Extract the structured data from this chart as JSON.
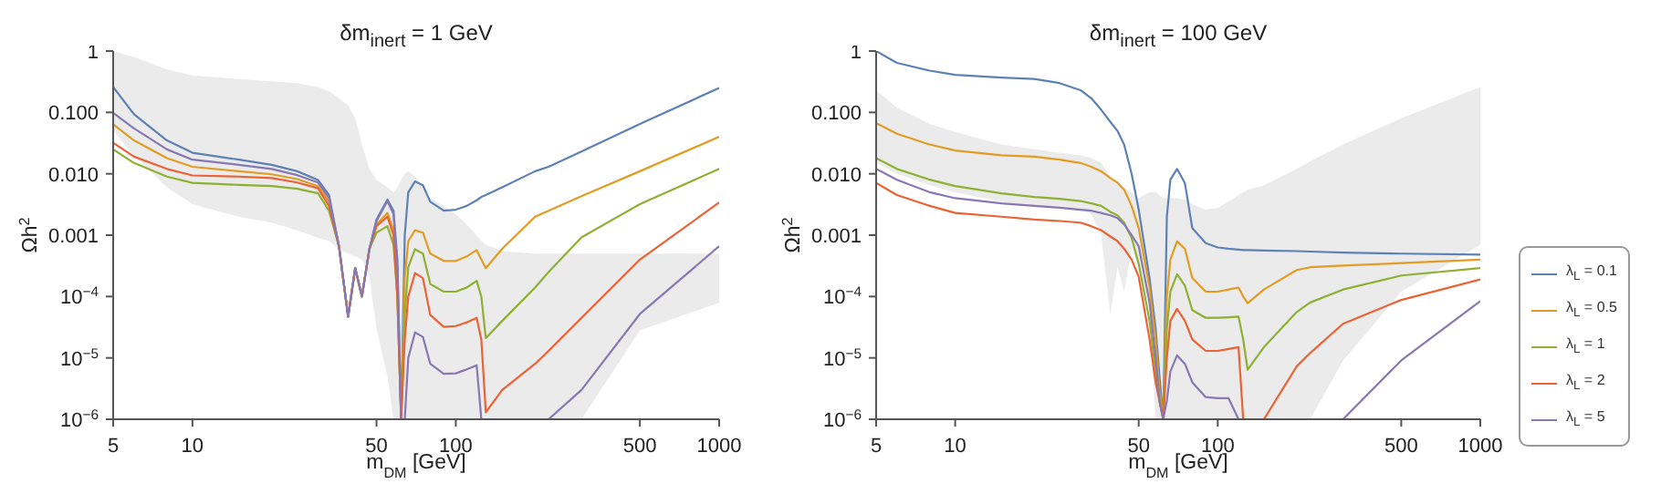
{
  "chart_data": [
    {
      "type": "line",
      "title": "δm$_{inert}$ = 1 GeV",
      "xlabel": "m$_{DM}$ [GeV]",
      "ylabel": "Ωh$^{2}$",
      "log": "xy",
      "grid": false,
      "legend": false,
      "xlim": [
        5,
        1000
      ],
      "ylim": [
        1e-06,
        1
      ],
      "xticks": [
        5,
        10,
        50,
        100,
        500,
        1000
      ],
      "yticks": [
        1,
        {
          "value": 0.1,
          "label": "0.100"
        },
        {
          "value": 0.01,
          "label": "0.010"
        },
        {
          "value": 0.001,
          "label": "0.001"
        },
        {
          "value": 0.0001,
          "label": "10$^{−4}$"
        },
        {
          "value": 1e-05,
          "label": "10$^{−5}$"
        },
        {
          "value": 1e-06,
          "label": "10$^{−6}$"
        }
      ],
      "x": [
        5,
        6,
        8,
        10,
        15,
        20,
        25,
        30,
        33,
        36,
        39,
        41.5,
        44,
        47,
        50,
        55,
        58,
        60,
        62,
        64,
        66,
        70,
        75,
        80,
        90,
        100,
        110,
        120,
        125,
        130,
        150,
        200,
        225,
        300,
        500,
        1000
      ],
      "series": [
        {
          "color": "#ebebeb",
          "values": [
            null,
            null,
            null,
            null,
            null,
            null,
            null,
            null,
            null,
            null,
            null,
            null,
            null,
            null,
            null,
            null,
            null,
            null,
            null,
            null,
            null,
            null,
            null,
            null,
            null,
            null,
            null,
            null,
            null,
            null,
            null,
            null,
            null,
            null,
            null,
            null
          ],
          "lower": [
            0.05,
            0.02,
            0.006,
            0.0032,
            0.002,
            0.0016,
            0.0012,
            0.0009,
            0.0008,
            0.0006,
            0.0005,
            0.00045,
            0.0004,
            0.0002,
            3e-05,
            5e-06,
            1e-06,
            1e-06,
            1e-06,
            1e-06,
            1e-06,
            1e-06,
            1e-06,
            1e-06,
            1e-06,
            1e-06,
            1e-06,
            1e-06,
            1e-06,
            1e-06,
            1e-06,
            1e-06,
            1e-06,
            1e-06,
            2.8e-05,
            7.9e-05
          ],
          "upper": [
            1,
            0.8,
            0.5,
            0.4,
            0.35,
            0.32,
            0.3,
            0.26,
            0.22,
            0.17,
            0.13,
            0.08,
            0.03,
            0.012,
            0.008,
            0.006,
            0.005,
            0.006,
            0.008,
            0.01,
            0.011,
            0.009,
            0.006,
            0.004,
            0.003,
            0.0022,
            0.0015,
            0.001,
            0.0008,
            0.0007,
            0.00055,
            0.0005,
            0.0005,
            0.0005,
            0.0005,
            0.0005
          ]
        },
        {
          "color": "#5e81b5",
          "values": [
            0.26,
            0.093,
            0.035,
            0.022,
            0.017,
            0.014,
            0.011,
            0.0079,
            0.0045,
            0.00066,
            4.7e-05,
            0.00029,
            0.0001,
            0.0006,
            0.0018,
            0.0038,
            0.0025,
            0.0004,
            1e-06,
            0.001,
            0.005,
            0.0075,
            0.0065,
            0.0035,
            0.0025,
            0.0026,
            0.003,
            0.0037,
            0.0042,
            0.0045,
            0.006,
            0.011,
            0.013,
            0.023,
            0.065,
            0.25
          ]
        },
        {
          "color": "#e19c24",
          "values": [
            0.064,
            0.035,
            0.018,
            0.013,
            0.011,
            0.0098,
            0.0082,
            0.0063,
            0.0035,
            0.00066,
            4.7e-05,
            0.00029,
            0.0001,
            0.0006,
            0.0015,
            0.0023,
            0.0012,
            0.0001,
            1e-06,
            0.0002,
            0.0008,
            0.0012,
            0.0011,
            0.0005,
            0.00038,
            0.00038,
            0.00045,
            0.00057,
            0.0004,
            0.00029,
            0.0006,
            0.002,
            0.0025,
            0.0043,
            0.011,
            0.04
          ]
        },
        {
          "color": "#8fb032",
          "values": [
            0.025,
            0.015,
            0.009,
            0.0071,
            0.0066,
            0.0063,
            0.0057,
            0.0048,
            0.0025,
            0.00066,
            4.7e-05,
            0.00029,
            0.0001,
            0.0006,
            0.0011,
            0.0014,
            0.0007,
            0.0001,
            1e-06,
            5e-05,
            0.0003,
            0.00059,
            0.0005,
            0.00016,
            0.00012,
            0.00012,
            0.00014,
            0.00018,
            0.0001,
            2.1e-05,
            4e-05,
            0.00014,
            0.00025,
            0.00092,
            0.0032,
            0.012
          ]
        },
        {
          "color": "#eb6235",
          "values": [
            0.032,
            0.019,
            0.012,
            0.0094,
            0.009,
            0.0085,
            0.0072,
            0.0058,
            0.003,
            0.00066,
            4.7e-05,
            0.00029,
            0.0001,
            0.0006,
            0.0014,
            0.002,
            0.001,
            0.0001,
            1e-06,
            2e-05,
            0.0001,
            0.00024,
            0.0002,
            5e-05,
            3.2e-05,
            3.3e-05,
            3.8e-05,
            4.5e-05,
            2e-05,
            1.3e-06,
            3e-06,
            8e-06,
            1.3e-05,
            4.5e-05,
            0.0004,
            0.0034
          ]
        },
        {
          "color": "#8778b3",
          "values": [
            0.098,
            0.055,
            0.025,
            0.017,
            0.014,
            0.012,
            0.0095,
            0.0072,
            0.004,
            0.00066,
            4.7e-05,
            0.00029,
            0.0001,
            0.0006,
            0.0017,
            0.0036,
            0.0022,
            0.0003,
            1e-06,
            1e-06,
            1e-05,
            2.6e-05,
            2.2e-05,
            8e-06,
            5.5e-06,
            5.6e-06,
            6.5e-06,
            7.6e-06,
            1e-06,
            null,
            null,
            null,
            1e-06,
            3e-06,
            5.2e-05,
            0.00066
          ]
        }
      ]
    },
    {
      "type": "line",
      "title": "δm$_{inert}$ = 100 GeV",
      "xlabel": "m$_{DM}$ [GeV]",
      "ylabel": "Ωh$^{2}$",
      "log": "xy",
      "grid": false,
      "legend": "right",
      "xlim": [
        5,
        1000
      ],
      "ylim": [
        1e-06,
        1
      ],
      "xticks": [
        5,
        10,
        50,
        100,
        500,
        1000
      ],
      "yticks": [
        1,
        {
          "value": 0.1,
          "label": "0.100"
        },
        {
          "value": 0.01,
          "label": "0.010"
        },
        {
          "value": 0.001,
          "label": "0.001"
        },
        {
          "value": 0.0001,
          "label": "10$^{−4}$"
        },
        {
          "value": 1e-05,
          "label": "10$^{−5}$"
        },
        {
          "value": 1e-06,
          "label": "10$^{−6}$"
        }
      ],
      "x": [
        5,
        6,
        8,
        10,
        15,
        20,
        25,
        30,
        33,
        36,
        39,
        41.5,
        44,
        47,
        50,
        55,
        58,
        60,
        62,
        64,
        66,
        70,
        75,
        80,
        90,
        100,
        110,
        120,
        125,
        130,
        150,
        200,
        225,
        300,
        500,
        1000
      ],
      "series": [
        {
          "color": "#ebebeb",
          "values": [
            null,
            null,
            null,
            null,
            null,
            null,
            null,
            null,
            null,
            null,
            null,
            null,
            null,
            null,
            null,
            null,
            null,
            null,
            null,
            null,
            null,
            null,
            null,
            null,
            null,
            null,
            null,
            null,
            null,
            null,
            null,
            null,
            null,
            null,
            null,
            null
          ],
          "lower": [
            0.015,
            0.01,
            0.0065,
            0.005,
            0.0035,
            0.003,
            0.0028,
            0.0026,
            0.0022,
            0.001,
            5e-05,
            0.0003,
            0.00012,
            0.0006,
            0.0003,
            6e-05,
            1e-06,
            1e-06,
            1e-06,
            1e-06,
            1e-06,
            1e-06,
            1e-06,
            1e-06,
            1e-06,
            1e-06,
            1e-06,
            1e-06,
            1e-06,
            1e-06,
            1e-06,
            1e-06,
            1e-06,
            9e-06,
            0.00012,
            0.0007
          ],
          "upper": [
            0.23,
            0.12,
            0.065,
            0.048,
            0.03,
            0.025,
            0.022,
            0.02,
            0.018,
            0.015,
            0.009,
            0.007,
            0.006,
            0.005,
            0.004,
            0.005,
            0.005,
            0.0045,
            0.004,
            0.004,
            0.004,
            0.004,
            0.0038,
            0.0032,
            0.0026,
            0.0028,
            0.0035,
            0.0045,
            0.005,
            0.0055,
            0.0065,
            0.012,
            0.016,
            0.03,
            0.08,
            0.26
          ]
        },
        {
          "name": "λ$_{L}$ = 0.1",
          "color": "#5e81b5",
          "values": [
            1,
            0.64,
            0.48,
            0.41,
            0.37,
            0.35,
            0.3,
            0.23,
            0.17,
            0.11,
            0.07,
            0.05,
            0.03,
            0.01,
            0.0026,
            0.0002,
            3e-05,
            5e-06,
            1e-06,
            0.002,
            0.008,
            0.012,
            0.007,
            0.0013,
            0.00074,
            0.00063,
            0.0006,
            0.00058,
            0.00057,
            0.00057,
            0.00056,
            0.00055,
            0.00054,
            0.00052,
            0.0005,
            0.00048
          ]
        },
        {
          "name": "λ$_{L}$ = 0.5",
          "color": "#e19c24",
          "values": [
            0.067,
            0.045,
            0.03,
            0.024,
            0.02,
            0.019,
            0.017,
            0.015,
            0.013,
            0.011,
            0.0085,
            0.0072,
            0.0055,
            0.003,
            0.0013,
            0.00014,
            2e-05,
            3e-06,
            1e-06,
            0.0001,
            0.0004,
            0.00079,
            0.0006,
            0.0002,
            0.00012,
            0.00012,
            0.00013,
            0.00014,
            0.0001,
            7.8e-05,
            0.00013,
            0.00027,
            0.0003,
            0.00032,
            0.00035,
            0.0004
          ]
        },
        {
          "name": "λ$_{L}$ = 1",
          "color": "#8fb032",
          "values": [
            0.018,
            0.012,
            0.008,
            0.0063,
            0.0048,
            0.0042,
            0.0039,
            0.0036,
            0.0033,
            0.003,
            0.0024,
            0.0021,
            0.0016,
            0.0009,
            0.00034,
            4e-05,
            6e-06,
            2e-06,
            1e-06,
            3e-05,
            0.00012,
            0.00023,
            0.00015,
            6e-05,
            4.5e-05,
            4.5e-05,
            4.6e-05,
            4.7e-05,
            2e-05,
            6.4e-06,
            1.5e-05,
            5.6e-05,
            8e-05,
            0.00013,
            0.00022,
            0.00029
          ]
        },
        {
          "name": "λ$_{L}$ = 2",
          "color": "#eb6235",
          "values": [
            0.0071,
            0.0045,
            0.003,
            0.0023,
            0.002,
            0.0018,
            0.0017,
            0.0016,
            0.0014,
            0.0012,
            0.00095,
            0.0008,
            0.0006,
            0.0004,
            0.00021,
            2e-05,
            4e-06,
            2e-06,
            1e-06,
            1e-05,
            4e-05,
            6.3e-05,
            4e-05,
            2e-05,
            1.3e-05,
            1.3e-05,
            1.4e-05,
            1.5e-05,
            1e-06,
            null,
            1e-06,
            7.3e-06,
            1.2e-05,
            3.6e-05,
            8.8e-05,
            0.00019
          ]
        },
        {
          "name": "λ$_{L}$ = 5",
          "color": "#8778b3",
          "values": [
            0.012,
            0.008,
            0.005,
            0.004,
            0.0033,
            0.003,
            0.0028,
            0.0026,
            0.0025,
            0.0023,
            0.0021,
            0.0019,
            0.0015,
            0.001,
            0.00066,
            8e-05,
            1e-05,
            2e-06,
            1e-06,
            2e-06,
            6e-06,
            1.1e-05,
            8e-06,
            4e-06,
            2.3e-06,
            2.2e-06,
            2.2e-06,
            1e-06,
            null,
            null,
            null,
            null,
            null,
            1e-06,
            9.1e-06,
            8.4e-05
          ]
        }
      ]
    }
  ]
}
